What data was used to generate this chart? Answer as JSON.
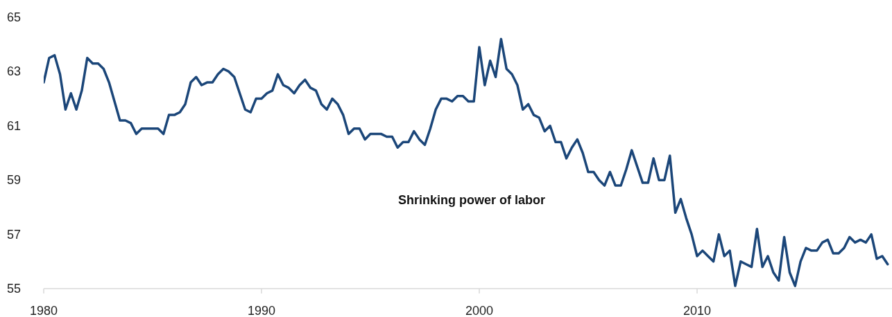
{
  "chart_data": {
    "type": "line",
    "annotations": [
      "Shrinking power of labor"
    ],
    "x": [
      1980,
      1980.25,
      1980.5,
      1980.75,
      1981,
      1981.25,
      1981.5,
      1981.75,
      1982,
      1982.25,
      1982.5,
      1982.75,
      1983,
      1983.25,
      1983.5,
      1983.75,
      1984,
      1984.25,
      1984.5,
      1984.75,
      1985,
      1985.25,
      1985.5,
      1985.75,
      1986,
      1986.25,
      1986.5,
      1986.75,
      1987,
      1987.25,
      1987.5,
      1987.75,
      1988,
      1988.25,
      1988.5,
      1988.75,
      1989,
      1989.25,
      1989.5,
      1989.75,
      1990,
      1990.25,
      1990.5,
      1990.75,
      1991,
      1991.25,
      1991.5,
      1991.75,
      1992,
      1992.25,
      1992.5,
      1992.75,
      1993,
      1993.25,
      1993.5,
      1993.75,
      1994,
      1994.25,
      1994.5,
      1994.75,
      1995,
      1995.25,
      1995.5,
      1995.75,
      1996,
      1996.25,
      1996.5,
      1996.75,
      1997,
      1997.25,
      1997.5,
      1997.75,
      1998,
      1998.25,
      1998.5,
      1998.75,
      1999,
      1999.25,
      1999.5,
      1999.75,
      2000,
      2000.25,
      2000.5,
      2000.75,
      2001,
      2001.25,
      2001.5,
      2001.75,
      2002,
      2002.25,
      2002.5,
      2002.75,
      2003,
      2003.25,
      2003.5,
      2003.75,
      2004,
      2004.25,
      2004.5,
      2004.75,
      2005,
      2005.25,
      2005.5,
      2005.75,
      2006,
      2006.25,
      2006.5,
      2006.75,
      2007,
      2007.25,
      2007.5,
      2007.75,
      2008,
      2008.25,
      2008.5,
      2008.75,
      2009,
      2009.25,
      2009.5,
      2009.75,
      2010,
      2010.25,
      2010.5,
      2010.75,
      2011,
      2011.25,
      2011.5,
      2011.75,
      2012,
      2012.25,
      2012.5,
      2012.75,
      2013,
      2013.25,
      2013.5,
      2013.75,
      2014,
      2014.25,
      2014.5,
      2014.75,
      2015,
      2015.25,
      2015.5,
      2015.75,
      2016,
      2016.25,
      2016.5,
      2016.75,
      2017,
      2017.25,
      2017.5,
      2017.75,
      2018,
      2018.25,
      2018.5,
      2018.75
    ],
    "series": [
      {
        "color": "#1b4679",
        "values": [
          62.6,
          63.5,
          63.6,
          62.9,
          61.6,
          62.2,
          61.6,
          62.3,
          63.5,
          63.3,
          63.3,
          63.1,
          62.6,
          61.9,
          61.2,
          61.2,
          61.1,
          60.7,
          60.9,
          60.9,
          60.9,
          60.9,
          60.7,
          61.4,
          61.4,
          61.5,
          61.8,
          62.6,
          62.8,
          62.5,
          62.6,
          62.6,
          62.9,
          63.1,
          63.0,
          62.8,
          62.2,
          61.6,
          61.5,
          62.0,
          62.0,
          62.2,
          62.3,
          62.9,
          62.5,
          62.4,
          62.2,
          62.5,
          62.7,
          62.4,
          62.3,
          61.8,
          61.6,
          62.0,
          61.8,
          61.4,
          60.7,
          60.9,
          60.9,
          60.5,
          60.7,
          60.7,
          60.7,
          60.6,
          60.6,
          60.2,
          60.4,
          60.4,
          60.8,
          60.5,
          60.3,
          60.9,
          61.6,
          62.0,
          62.0,
          61.9,
          62.1,
          62.1,
          61.9,
          61.9,
          63.9,
          62.5,
          63.4,
          62.8,
          64.2,
          63.1,
          62.9,
          62.5,
          61.6,
          61.8,
          61.4,
          61.3,
          60.8,
          61.0,
          60.4,
          60.4,
          59.8,
          60.2,
          60.5,
          60.0,
          59.3,
          59.3,
          59.0,
          58.8,
          59.3,
          58.8,
          58.8,
          59.4,
          60.1,
          59.5,
          58.9,
          58.9,
          59.8,
          59.0,
          59.0,
          59.9,
          57.8,
          58.3,
          57.6,
          57.0,
          56.2,
          56.4,
          56.2,
          56.0,
          57.0,
          56.2,
          56.4,
          55.1,
          56.0,
          55.9,
          55.8,
          57.2,
          55.8,
          56.2,
          55.6,
          55.3,
          56.9,
          55.6,
          55.1,
          56.0,
          56.5,
          56.4,
          56.4,
          56.7,
          56.8,
          56.3,
          56.3,
          56.5,
          56.9,
          56.7,
          56.8,
          56.7,
          57.0,
          56.1,
          56.2,
          55.9
        ]
      }
    ],
    "xlim": [
      1980,
      2019
    ],
    "xticks": [
      1980,
      1990,
      2000,
      2010
    ],
    "ylim": [
      55,
      65
    ],
    "yticks": [
      55,
      57,
      59,
      61,
      63,
      65
    ],
    "grid": false,
    "marker": "none",
    "line_style": "solid"
  }
}
